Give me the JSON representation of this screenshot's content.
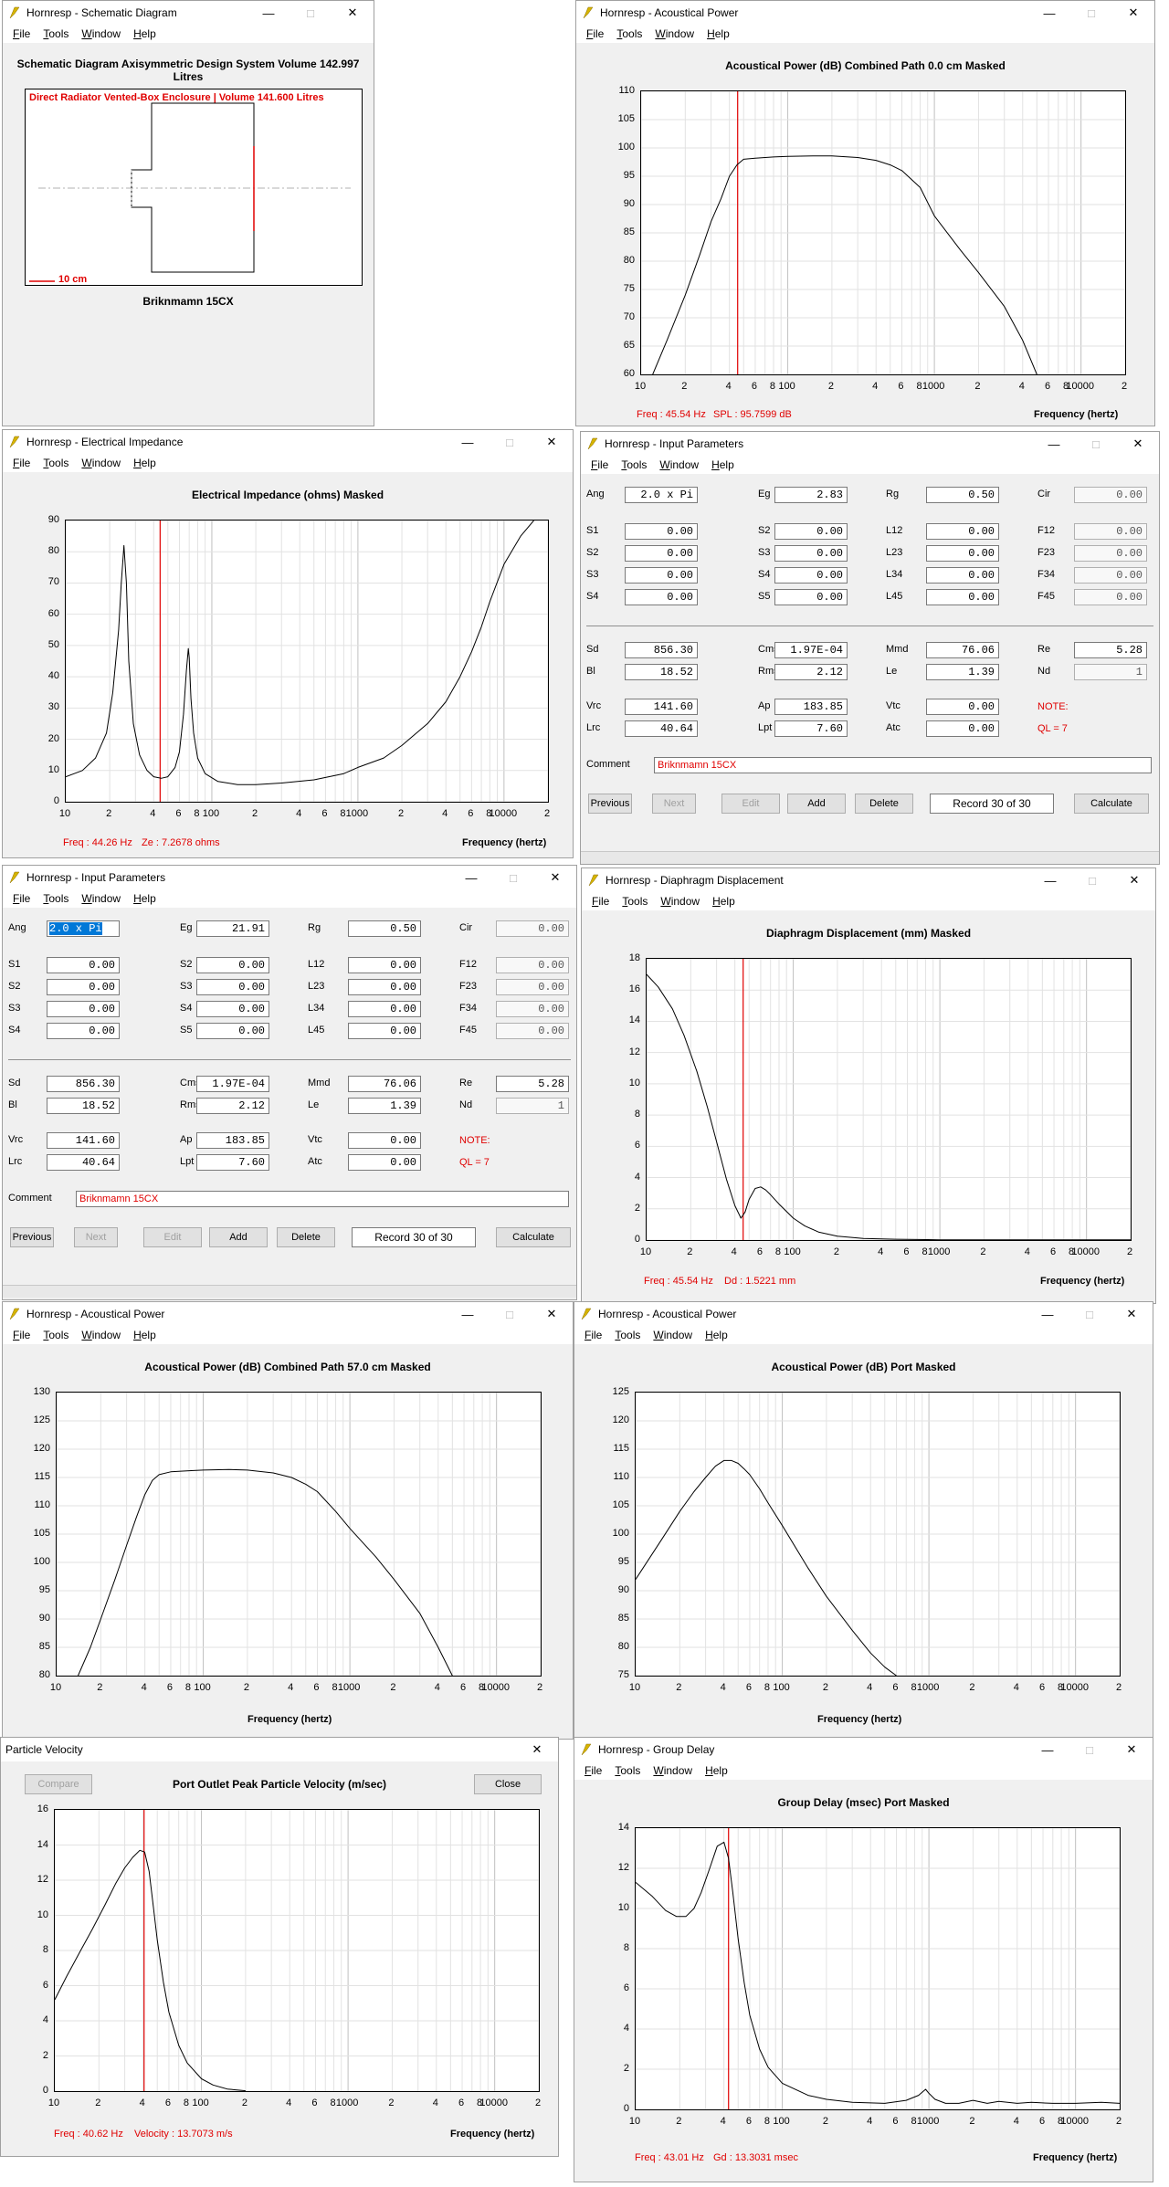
{
  "app": "Hornresp",
  "menu": [
    "File",
    "Tools",
    "Window",
    "Help"
  ],
  "common": {
    "freq_axis": "Frequency (hertz)",
    "x_ticks_1k": [
      "10",
      "2",
      "4",
      "6",
      "8",
      "100",
      "2",
      "4",
      "6",
      "8",
      "1000",
      "2",
      "4",
      "6",
      "8",
      "10000",
      "2"
    ]
  },
  "schematic": {
    "window_title": "Hornresp - Schematic Diagram",
    "header": "Schematic Diagram   Axisymmetric Design   System Volume 142.997 Litres",
    "caption": "Direct Radiator Vented-Box Enclosure | Volume 141.600 Litres",
    "scale_label": "10 cm",
    "footer": "Briknmamn 15CX"
  },
  "ap_main": {
    "window_title": "Hornresp - Acoustical Power",
    "header": "Acoustical Power (dB)   Combined   Path 0.0 cm   Masked",
    "readout_freq": "Freq : 45.54 Hz",
    "readout_val": "SPL : 95.7599 dB",
    "chart_data": {
      "type": "line",
      "title": "Acoustical Power (dB)",
      "xlabel": "Frequency (hertz)",
      "xscale": "log",
      "xlim": [
        10,
        20000
      ],
      "ylim": [
        60,
        110
      ],
      "y_ticks": [
        60,
        65,
        70,
        75,
        80,
        85,
        90,
        95,
        100,
        105,
        110
      ],
      "marker_hz": 45.54,
      "series": [
        {
          "x": [
            12,
            15,
            20,
            25,
            30,
            35,
            40,
            45,
            50,
            60,
            80,
            100,
            150,
            200,
            300,
            400,
            500,
            600,
            800,
            1000,
            1500,
            2000,
            3000,
            4000,
            5000
          ],
          "y": [
            60,
            66,
            74,
            81,
            87,
            91,
            95,
            97,
            98,
            98.2,
            98.4,
            98.5,
            98.6,
            98.6,
            98.3,
            97.8,
            97,
            96,
            93,
            88,
            82,
            78,
            72,
            66,
            60
          ]
        }
      ]
    }
  },
  "impedance": {
    "window_title": "Hornresp - Electrical Impedance",
    "header": "Electrical Impedance (ohms)   Masked",
    "readout_freq": "Freq : 44.26 Hz",
    "readout_val": "Ze : 7.2678 ohms",
    "chart_data": {
      "type": "line",
      "title": "Electrical Impedance (ohms)",
      "xlabel": "Frequency (hertz)",
      "xscale": "log",
      "xlim": [
        10,
        20000
      ],
      "ylim": [
        0,
        90
      ],
      "y_ticks": [
        0,
        10,
        20,
        30,
        40,
        50,
        60,
        70,
        80,
        90
      ],
      "marker_hz": 44.26,
      "series": [
        {
          "x": [
            10,
            13,
            16,
            19,
            21,
            23,
            24,
            25,
            26,
            27,
            29,
            32,
            36,
            40,
            45,
            50,
            56,
            60,
            64,
            67,
            69,
            70,
            72,
            75,
            80,
            90,
            110,
            150,
            200,
            300,
            500,
            800,
            1000,
            1500,
            2000,
            3000,
            4000,
            5000,
            6000,
            7000,
            8000,
            10000,
            13000,
            16000
          ],
          "y": [
            8,
            10,
            14,
            22,
            35,
            55,
            70,
            82,
            70,
            45,
            25,
            15,
            10,
            8,
            7.5,
            8,
            11,
            16,
            28,
            42,
            49,
            46,
            33,
            22,
            14,
            9,
            6.5,
            5.5,
            5.5,
            6,
            7,
            9,
            11,
            14,
            18,
            25,
            32,
            40,
            48,
            56,
            64,
            76,
            85,
            90
          ]
        }
      ]
    }
  },
  "params": {
    "window_title": "Hornresp - Input Parameters",
    "row1": [
      {
        "label": "Ang",
        "value": "2.0 x Pi"
      },
      {
        "label": "Eg",
        "value": "2.83"
      },
      {
        "label": "Rg",
        "value": "0.50"
      },
      {
        "label": "Cir",
        "value": "0.00"
      }
    ],
    "row1b": [
      {
        "label": "Ang",
        "value": "2.0 x Pi"
      },
      {
        "label": "Eg",
        "value": "21.91"
      },
      {
        "label": "Rg",
        "value": "0.50"
      },
      {
        "label": "Cir",
        "value": "0.00"
      }
    ],
    "grid": [
      [
        {
          "label": "S1",
          "value": "0.00"
        },
        {
          "label": "S2",
          "value": "0.00"
        },
        {
          "label": "L12",
          "value": "0.00"
        },
        {
          "label": "F12",
          "value": "0.00"
        }
      ],
      [
        {
          "label": "S2",
          "value": "0.00"
        },
        {
          "label": "S3",
          "value": "0.00"
        },
        {
          "label": "L23",
          "value": "0.00"
        },
        {
          "label": "F23",
          "value": "0.00"
        }
      ],
      [
        {
          "label": "S3",
          "value": "0.00"
        },
        {
          "label": "S4",
          "value": "0.00"
        },
        {
          "label": "L34",
          "value": "0.00"
        },
        {
          "label": "F34",
          "value": "0.00"
        }
      ],
      [
        {
          "label": "S4",
          "value": "0.00"
        },
        {
          "label": "S5",
          "value": "0.00"
        },
        {
          "label": "L45",
          "value": "0.00"
        },
        {
          "label": "F45",
          "value": "0.00"
        }
      ]
    ],
    "driver": [
      [
        {
          "label": "Sd",
          "value": "856.30"
        },
        {
          "label": "Cms",
          "value": "1.97E-04"
        },
        {
          "label": "Mmd",
          "value": "76.06"
        },
        {
          "label": "Re",
          "value": "5.28"
        }
      ],
      [
        {
          "label": "Bl",
          "value": "18.52"
        },
        {
          "label": "Rms",
          "value": "2.12"
        },
        {
          "label": "Le",
          "value": "1.39"
        },
        {
          "label": "Nd",
          "value": "1"
        }
      ]
    ],
    "box": [
      [
        {
          "label": "Vrc",
          "value": "141.60"
        },
        {
          "label": "Ap",
          "value": "183.85"
        },
        {
          "label": "Vtc",
          "value": "0.00"
        }
      ],
      [
        {
          "label": "Lrc",
          "value": "40.64"
        },
        {
          "label": "Lpt",
          "value": "7.60"
        },
        {
          "label": "Atc",
          "value": "0.00"
        }
      ]
    ],
    "note": "NOTE:",
    "ql": "QL = 7",
    "comment_label": "Comment",
    "comment": "Briknmamn 15CX",
    "buttons": {
      "previous": "Previous",
      "next": "Next",
      "edit": "Edit",
      "add": "Add",
      "delete": "Delete",
      "record": "Record 30 of 30",
      "calculate": "Calculate"
    }
  },
  "displacement": {
    "window_title": "Hornresp - Diaphragm Displacement",
    "header": "Diaphragm Displacement (mm)   Masked",
    "readout_freq": "Freq : 45.54 Hz",
    "readout_val": "Dd : 1.5221 mm",
    "chart_data": {
      "type": "line",
      "title": "Diaphragm Displacement (mm)",
      "xlabel": "Frequency (hertz)",
      "xscale": "log",
      "xlim": [
        10,
        20000
      ],
      "ylim": [
        0,
        18
      ],
      "y_ticks": [
        0,
        2,
        4,
        6,
        8,
        10,
        12,
        14,
        16,
        18
      ],
      "marker_hz": 45.54,
      "series": [
        {
          "x": [
            10,
            12,
            15,
            18,
            22,
            26,
            30,
            35,
            40,
            44,
            47,
            50,
            55,
            60,
            65,
            70,
            80,
            100,
            120,
            150,
            200,
            300,
            500,
            1000,
            20000
          ],
          "y": [
            17,
            16.2,
            14.8,
            13.1,
            10.8,
            8.5,
            6.3,
            3.9,
            2.2,
            1.4,
            1.8,
            2.6,
            3.3,
            3.4,
            3.2,
            2.9,
            2.3,
            1.4,
            0.9,
            0.5,
            0.25,
            0.1,
            0.05,
            0.02,
            0.01
          ]
        }
      ]
    }
  },
  "ap_combined57": {
    "window_title": "Hornresp - Acoustical Power",
    "header": "Acoustical Power (dB)   Combined   Path 57.0 cm   Masked",
    "chart_data": {
      "type": "line",
      "title": "Acoustical Power (dB)",
      "xlabel": "Frequency (hertz)",
      "xscale": "log",
      "xlim": [
        10,
        20000
      ],
      "ylim": [
        80,
        130
      ],
      "y_ticks": [
        80,
        85,
        90,
        95,
        100,
        105,
        110,
        115,
        120,
        125,
        130
      ],
      "series": [
        {
          "x": [
            14,
            17,
            20,
            25,
            30,
            35,
            40,
            45,
            50,
            60,
            80,
            100,
            150,
            200,
            300,
            400,
            500,
            600,
            800,
            1000,
            1500,
            2000,
            3000,
            4000,
            5000
          ],
          "y": [
            80,
            85,
            90,
            97,
            103,
            108,
            112,
            114.5,
            115.5,
            116,
            116.2,
            116.3,
            116.4,
            116.3,
            115.8,
            115,
            113.8,
            112.5,
            109,
            106,
            101,
            97,
            91,
            85,
            80
          ]
        }
      ]
    }
  },
  "ap_port": {
    "window_title": "Hornresp - Acoustical Power",
    "header": "Acoustical Power (dB)   Port   Masked",
    "chart_data": {
      "type": "line",
      "title": "Acoustical Power (dB)",
      "xlabel": "Frequency (hertz)",
      "xscale": "log",
      "xlim": [
        10,
        20000
      ],
      "ylim": [
        75,
        125
      ],
      "y_ticks": [
        75,
        80,
        85,
        90,
        95,
        100,
        105,
        110,
        115,
        120,
        125
      ],
      "series": [
        {
          "x": [
            10,
            15,
            20,
            25,
            30,
            35,
            40,
            45,
            50,
            55,
            60,
            70,
            80,
            100,
            150,
            200,
            300,
            400,
            500,
            600
          ],
          "y": [
            92,
            99,
            104,
            107.5,
            110,
            112,
            113,
            113,
            112.5,
            111.5,
            110.5,
            108,
            105.5,
            101.5,
            94,
            89,
            83,
            79,
            76.5,
            75
          ]
        }
      ]
    }
  },
  "velocity": {
    "window_title": "Particle Velocity",
    "header": "Port Outlet Peak Particle Velocity (m/sec)",
    "compare": "Compare",
    "close": "Close",
    "readout_freq": "Freq : 40.62 Hz",
    "readout_val": "Velocity : 13.7073 m/s",
    "chart_data": {
      "type": "line",
      "title": "Port Outlet Peak Particle Velocity (m/sec)",
      "xlabel": "Frequency (hertz)",
      "xscale": "log",
      "xlim": [
        10,
        20000
      ],
      "ylim": [
        0,
        16
      ],
      "y_ticks": [
        0,
        2,
        4,
        6,
        8,
        10,
        12,
        14,
        16
      ],
      "marker_hz": 40.62,
      "series": [
        {
          "x": [
            10,
            12,
            15,
            18,
            22,
            26,
            30,
            34,
            38,
            41,
            44,
            47,
            50,
            55,
            60,
            70,
            80,
            100,
            120,
            150,
            200
          ],
          "y": [
            5.2,
            6.5,
            8,
            9.2,
            10.6,
            11.8,
            12.7,
            13.3,
            13.7,
            13.6,
            12.5,
            10.5,
            8.6,
            6.2,
            4.5,
            2.6,
            1.6,
            0.7,
            0.35,
            0.12,
            0.02
          ]
        }
      ]
    }
  },
  "group_delay": {
    "window_title": "Hornresp - Group Delay",
    "header": "Group Delay (msec)   Port   Masked",
    "readout_freq": "Freq : 43.01 Hz",
    "readout_val": "Gd : 13.3031 msec",
    "chart_data": {
      "type": "line",
      "title": "Group Delay (msec)",
      "xlabel": "Frequency (hertz)",
      "xscale": "log",
      "xlim": [
        10,
        20000
      ],
      "ylim": [
        0,
        14
      ],
      "y_ticks": [
        0,
        2,
        4,
        6,
        8,
        10,
        12,
        14
      ],
      "marker_hz": 43.01,
      "series": [
        {
          "x": [
            10,
            13,
            16,
            19,
            22,
            25,
            28,
            32,
            36,
            40,
            43,
            46,
            50,
            55,
            60,
            70,
            80,
            100,
            150,
            200,
            300,
            500,
            700,
            850,
            950,
            1000,
            1100,
            1300,
            1600,
            2000,
            2500,
            3000,
            4000,
            5000,
            7000,
            10000,
            15000,
            20000
          ],
          "y": [
            11.3,
            10.6,
            9.9,
            9.6,
            9.6,
            10,
            10.8,
            12,
            13.1,
            13.3,
            12.5,
            10.8,
            8.5,
            6.3,
            4.7,
            3,
            2.1,
            1.3,
            0.7,
            0.5,
            0.35,
            0.3,
            0.45,
            0.7,
            1.0,
            0.8,
            0.5,
            0.3,
            0.3,
            0.45,
            0.3,
            0.4,
            0.3,
            0.35,
            0.3,
            0.3,
            0.35,
            0.3
          ]
        }
      ]
    }
  }
}
